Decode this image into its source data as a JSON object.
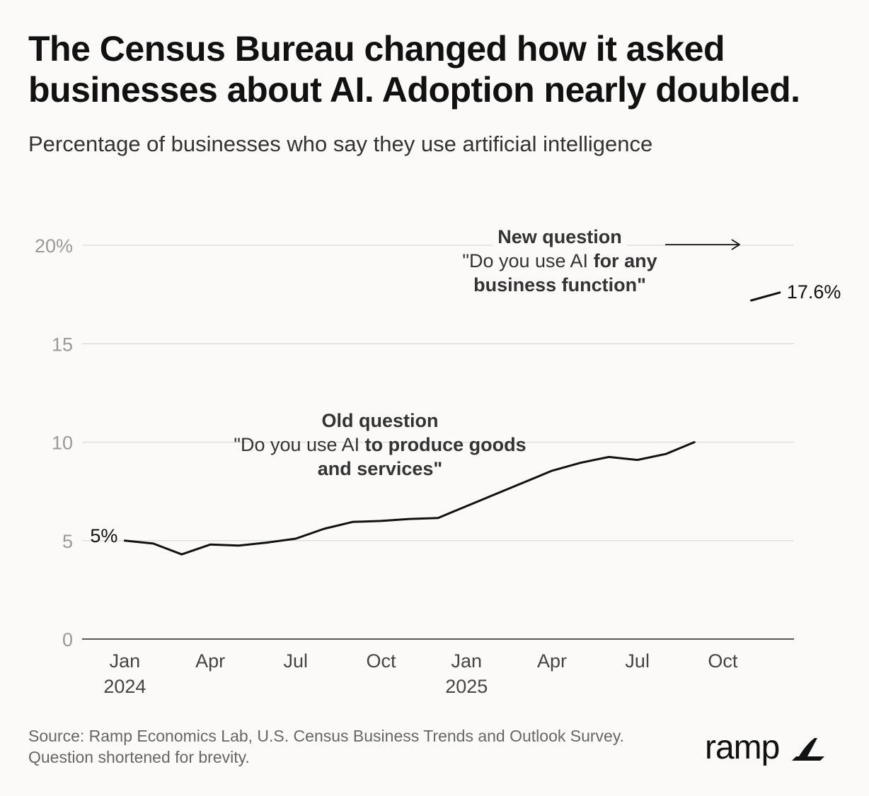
{
  "title_lines": [
    "The Census Bureau changed how it asked",
    "businesses about AI. Adoption nearly doubled."
  ],
  "subtitle": "Percentage of businesses who say they use artificial intelligence",
  "footer_lines": [
    "Source: Ramp Economics Lab, U.S. Census Business Trends and Outlook Survey.",
    "Question shortened for brevity."
  ],
  "brand": {
    "name": "ramp",
    "logo_icon": "ramp-leaf-icon"
  },
  "colors": {
    "background": "#fbfaf8",
    "line": "#111111",
    "grid": "#d9d9d6",
    "tick_text": "#999999",
    "axis_text": "#444444"
  },
  "chart_data": {
    "type": "line",
    "title": "The Census Bureau changed how it asked businesses about AI. Adoption nearly doubled.",
    "ylabel": "Percentage of businesses who say they use artificial intelligence",
    "ylim": [
      0,
      20
    ],
    "yticks": [
      {
        "value": 0,
        "label": "0"
      },
      {
        "value": 5,
        "label": "5"
      },
      {
        "value": 10,
        "label": "10"
      },
      {
        "value": 15,
        "label": "15"
      },
      {
        "value": 20,
        "label": "20%"
      }
    ],
    "xlim": [
      0,
      25
    ],
    "xticks": [
      {
        "value": 1.5,
        "label": "Jan",
        "sublabel": "2024"
      },
      {
        "value": 4.5,
        "label": "Apr",
        "sublabel": ""
      },
      {
        "value": 7.5,
        "label": "Jul",
        "sublabel": ""
      },
      {
        "value": 10.5,
        "label": "Oct",
        "sublabel": ""
      },
      {
        "value": 13.5,
        "label": "Jan",
        "sublabel": "2025"
      },
      {
        "value": 16.5,
        "label": "Apr",
        "sublabel": ""
      },
      {
        "value": 19.5,
        "label": "Jul",
        "sublabel": ""
      },
      {
        "value": 22.5,
        "label": "Oct",
        "sublabel": ""
      }
    ],
    "grid": true,
    "series": [
      {
        "name": "Old question",
        "x": [
          1.5,
          2.5,
          3.5,
          4.5,
          5.5,
          6.5,
          7.5,
          8.5,
          9.5,
          10.5,
          11.5,
          12.5,
          13.5,
          14.5,
          15.5,
          16.5,
          17.5,
          18.5,
          19.5,
          20.5,
          21.5
        ],
        "values": [
          5.0,
          4.85,
          4.3,
          4.8,
          4.75,
          4.9,
          5.1,
          5.6,
          5.95,
          6.0,
          6.1,
          6.15,
          6.75,
          7.35,
          7.95,
          8.55,
          8.95,
          9.25,
          9.1,
          9.4,
          10.0
        ],
        "start_label": "5%"
      },
      {
        "name": "New question",
        "x": [
          23.5,
          24.5
        ],
        "values": [
          17.2,
          17.6
        ],
        "end_label": "17.6%"
      }
    ],
    "annotations": [
      {
        "id": "new",
        "title": "New question",
        "lines": [
          [
            {
              "text": "\"Do you use AI ",
              "bold": false
            },
            {
              "text": "for any",
              "bold": true
            }
          ],
          [
            {
              "text": "business function\"",
              "bold": true
            }
          ]
        ],
        "arrow": true
      },
      {
        "id": "old",
        "title": "Old question",
        "lines": [
          [
            {
              "text": "\"Do you use AI ",
              "bold": false
            },
            {
              "text": "to produce goods",
              "bold": true
            }
          ],
          [
            {
              "text": "and services\"",
              "bold": true
            }
          ]
        ],
        "arrow": false
      }
    ]
  }
}
